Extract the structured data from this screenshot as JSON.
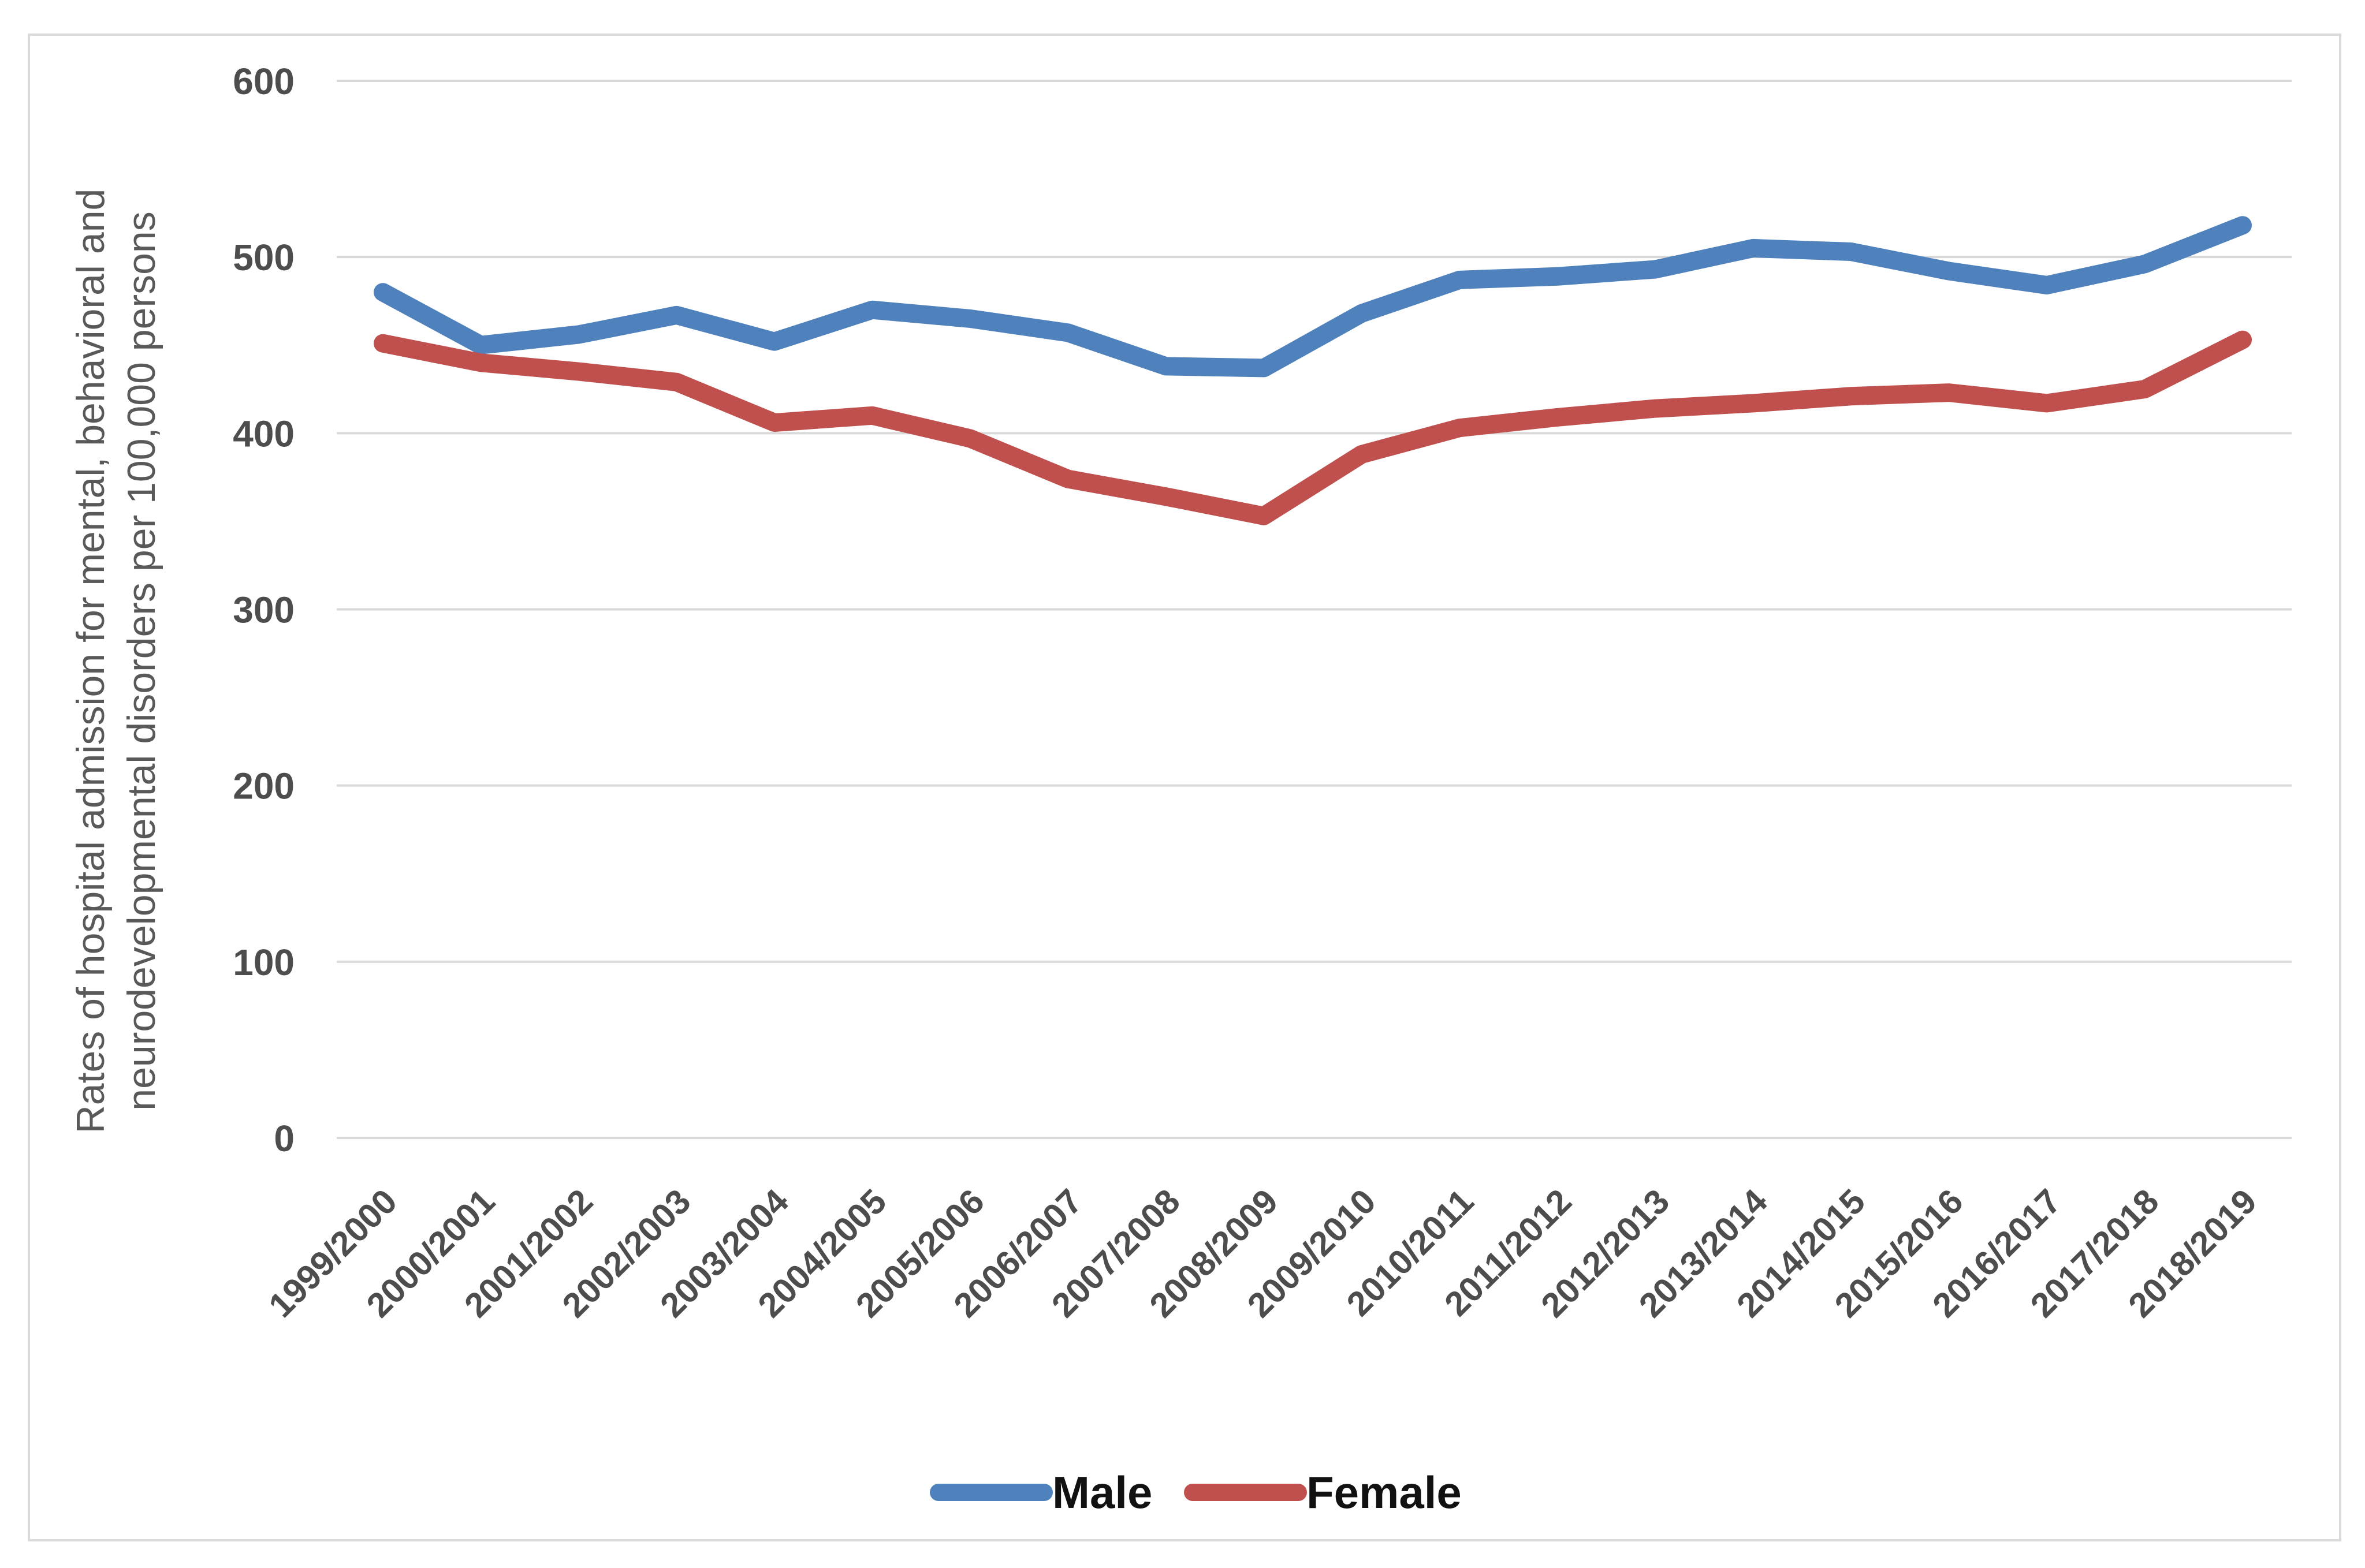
{
  "chart_data": {
    "type": "line",
    "title": "",
    "xlabel": "",
    "ylabel_lines": [
      "Rates of hospital admission for mental, behavioral and",
      "neurodevelopmental disorders per 100,000 persons"
    ],
    "categories": [
      "1999/2000",
      "2000/2001",
      "2001/2002",
      "2002/2003",
      "2003/2004",
      "2004/2005",
      "2005/2006",
      "2006/2007",
      "2007/2008",
      "2008/2009",
      "2009/2010",
      "2010/2011",
      "2011/2012",
      "2012/2013",
      "2013/2014",
      "2014/2015",
      "2015/2016",
      "2016/2017",
      "2017/2018",
      "2018/2019"
    ],
    "series": [
      {
        "name": "Male",
        "color": "#4F81BD",
        "values": [
          480,
          450,
          456,
          467,
          452,
          470,
          465,
          457,
          438,
          437,
          468,
          487,
          489,
          493,
          505,
          503,
          492,
          484,
          496,
          518
        ]
      },
      {
        "name": "Female",
        "color": "#C0504D",
        "values": [
          451,
          440,
          435,
          429,
          406,
          410,
          397,
          374,
          364,
          353,
          388,
          403,
          409,
          414,
          417,
          421,
          423,
          417,
          425,
          453
        ]
      }
    ],
    "yticks": [
      0,
      100,
      200,
      300,
      400,
      500,
      600
    ],
    "ylim": [
      0,
      600
    ],
    "grid": true,
    "gridline_color": "#D9D9D9",
    "legend_position": "bottom"
  }
}
